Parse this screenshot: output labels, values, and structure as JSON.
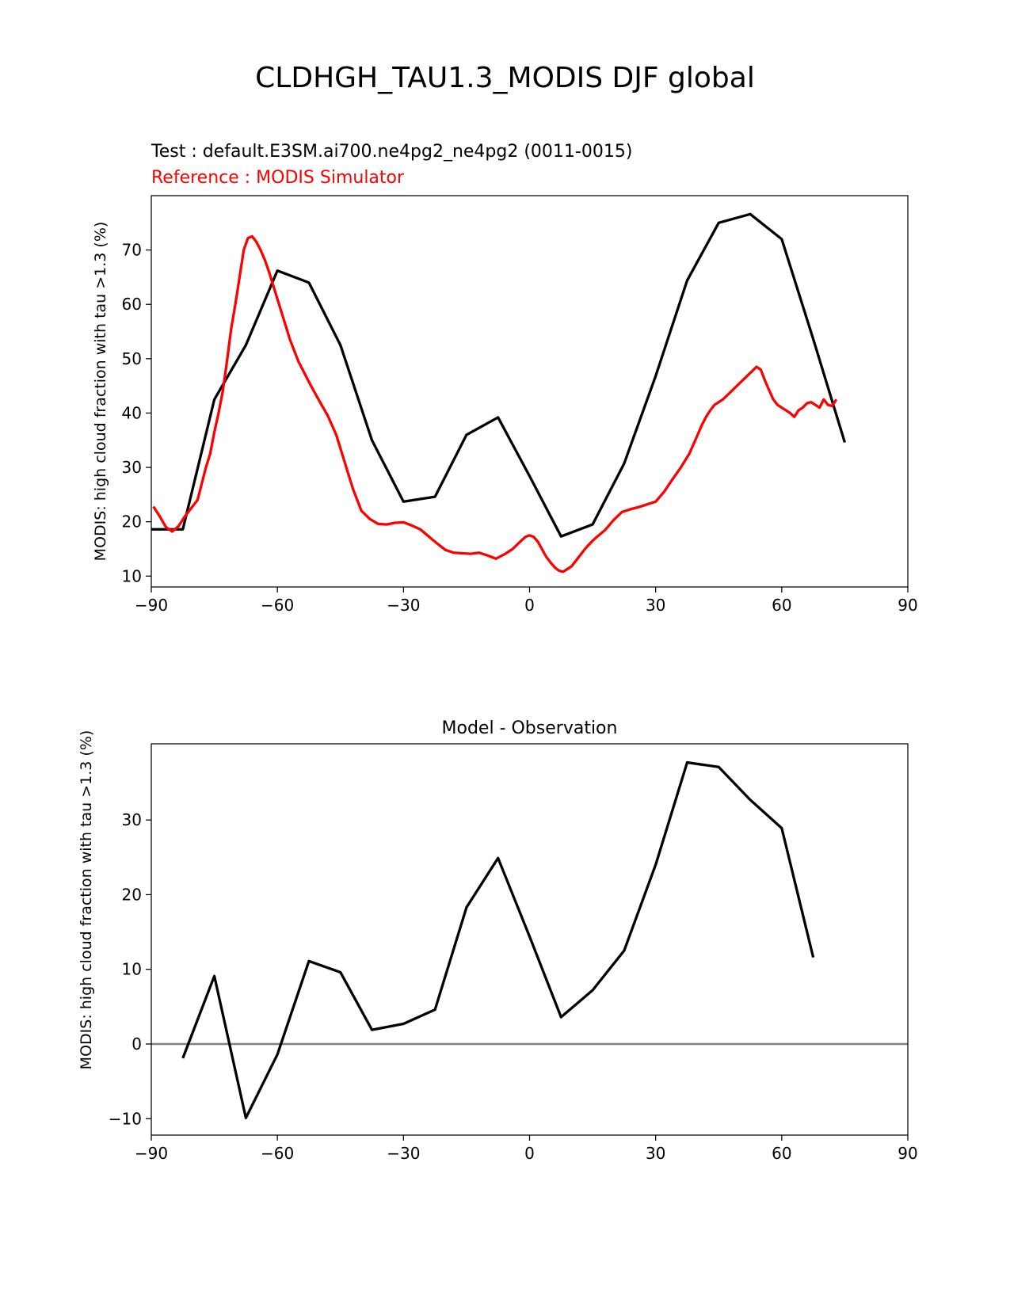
{
  "figure": {
    "suptitle": "CLDHGH_TAU1.3_MODIS DJF global"
  },
  "chart_data": [
    {
      "type": "line",
      "title_test": "Test : default.E3SM.ai700.ne4pg2_ne4pg2 (0011-0015)",
      "title_reference": "Reference : MODIS Simulator",
      "xlabel": "",
      "ylabel": "MODIS: high cloud fraction with tau >1.3 (%)",
      "xlim": [
        -90,
        90
      ],
      "ylim": [
        8,
        80
      ],
      "xticks": [
        -90,
        -60,
        -30,
        0,
        30,
        60,
        90
      ],
      "xtick_labels": [
        "−90",
        "−60",
        "−30",
        "0",
        "30",
        "60",
        "90"
      ],
      "yticks": [
        10,
        20,
        30,
        40,
        50,
        60,
        70
      ],
      "ytick_labels": [
        "10",
        "20",
        "30",
        "40",
        "50",
        "60",
        "70"
      ],
      "grid": false,
      "series": [
        {
          "color": "#000000",
          "x": [
            -90,
            -82.5,
            -75,
            -67.5,
            -60,
            -52.5,
            -45,
            -37.5,
            -30,
            -22.5,
            -15,
            -7.5,
            0,
            7.5,
            15,
            22.5,
            30,
            37.5,
            45,
            52.5,
            60,
            67.5,
            75
          ],
          "y": [
            18.6,
            18.6,
            42.5,
            52.5,
            66.2,
            64.0,
            52.5,
            35.0,
            23.7,
            24.6,
            36.0,
            39.2,
            28.4,
            17.3,
            19.5,
            30.7,
            46.8,
            64.4,
            75.0,
            76.6,
            72.0,
            53.6,
            34.6
          ]
        },
        {
          "color": "#ff0000",
          "x": [
            -89.5,
            -88,
            -86.5,
            -85,
            -83.5,
            -82,
            -80.5,
            -79,
            -78,
            -77,
            -76,
            -75,
            -74,
            -73,
            -72,
            -71,
            -70,
            -69,
            -68,
            -67,
            -66,
            -65,
            -64,
            -63,
            -62,
            -61,
            -60,
            -59,
            -58,
            -57,
            -56,
            -55,
            -54,
            -52,
            -50,
            -48,
            -46,
            -44,
            -42,
            -40,
            -38,
            -36,
            -34,
            -32,
            -30,
            -28,
            -26,
            -24,
            -22,
            -20,
            -18,
            -16,
            -14,
            -12,
            -10,
            -8,
            -6,
            -4,
            -2,
            -1,
            0,
            1,
            2,
            3,
            4,
            5,
            6,
            7,
            8,
            9,
            10,
            11,
            12,
            13,
            14,
            15,
            16,
            18,
            20,
            22,
            24,
            26,
            28,
            30,
            32,
            34,
            36,
            38,
            40,
            41,
            42,
            43,
            44,
            46,
            48,
            50,
            52,
            54,
            55,
            56,
            57,
            58,
            59,
            60,
            61,
            62,
            63,
            64,
            65,
            66,
            67,
            68,
            69,
            70,
            71,
            72,
            73
          ],
          "y": [
            22.8,
            21.0,
            19.0,
            18.2,
            19.2,
            21.0,
            22.5,
            24.0,
            27.0,
            30.0,
            32.5,
            36.5,
            40.0,
            44.0,
            49.5,
            55.5,
            60.0,
            65.0,
            70.0,
            72.2,
            72.5,
            71.5,
            70.0,
            68.2,
            66.0,
            63.5,
            61.0,
            58.5,
            56.0,
            53.5,
            51.5,
            49.5,
            48.0,
            45.0,
            42.2,
            39.5,
            36.0,
            31.0,
            26.0,
            22.0,
            20.5,
            19.6,
            19.5,
            19.8,
            19.9,
            19.3,
            18.6,
            17.3,
            16.0,
            14.8,
            14.3,
            14.2,
            14.1,
            14.3,
            13.8,
            13.2,
            14.0,
            15.0,
            16.5,
            17.2,
            17.5,
            17.2,
            16.3,
            14.9,
            13.5,
            12.5,
            11.6,
            11.0,
            10.8,
            11.3,
            11.8,
            12.8,
            13.8,
            14.8,
            15.7,
            16.5,
            17.2,
            18.5,
            20.3,
            21.8,
            22.3,
            22.7,
            23.2,
            23.7,
            25.5,
            27.8,
            30.0,
            32.5,
            36.0,
            37.8,
            39.3,
            40.5,
            41.5,
            42.5,
            44.0,
            45.5,
            47.0,
            48.5,
            48.0,
            46.0,
            44.2,
            42.5,
            41.5,
            41.0,
            40.5,
            40.0,
            39.3,
            40.5,
            41.0,
            41.8,
            42.0,
            41.5,
            41.0,
            42.5,
            41.5,
            41.3,
            42.5
          ],
          "note_end": [
            73,
            42.8
          ]
        }
      ]
    },
    {
      "type": "line",
      "title": "Model - Observation",
      "xlabel": "",
      "ylabel": "MODIS: high cloud fraction with tau >1.3 (%)",
      "xlim": [
        -90,
        90
      ],
      "ylim": [
        -12.2,
        40.2
      ],
      "xticks": [
        -90,
        -60,
        -30,
        0,
        30,
        60,
        90
      ],
      "xtick_labels": [
        "−90",
        "−60",
        "−30",
        "0",
        "30",
        "60",
        "90"
      ],
      "yticks": [
        -10,
        0,
        10,
        20,
        30
      ],
      "ytick_labels": [
        "−10",
        "0",
        "10",
        "20",
        "30"
      ],
      "grid": false,
      "zero_line_color": "#808080",
      "series": [
        {
          "color": "#000000",
          "x": [
            -82.5,
            -75,
            -67.5,
            -60,
            -52.5,
            -45,
            -37.5,
            -30,
            -22.5,
            -15,
            -7.5,
            0,
            7.5,
            15,
            22.5,
            30,
            37.5,
            45,
            52.5,
            60,
            67.5
          ],
          "y": [
            -1.9,
            9.1,
            -9.9,
            -1.4,
            11.1,
            9.6,
            1.9,
            2.7,
            4.6,
            18.3,
            24.9,
            14.4,
            3.6,
            7.2,
            12.5,
            24.0,
            37.7,
            37.1,
            32.7,
            28.9,
            11.6
          ]
        }
      ]
    }
  ]
}
